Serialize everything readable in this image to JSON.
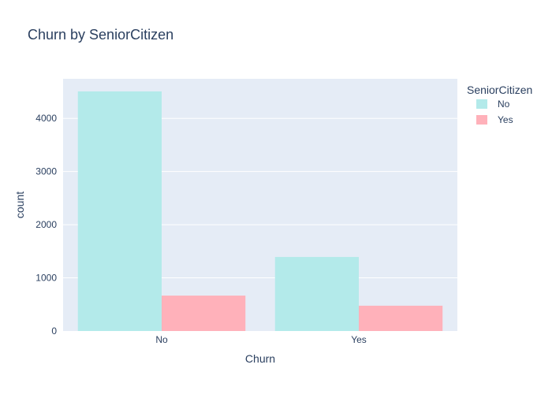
{
  "chart_data": {
    "type": "bar",
    "title": "Churn by SeniorCitizen",
    "xlabel": "Churn",
    "ylabel": "count",
    "categories": [
      "No",
      "Yes"
    ],
    "series": [
      {
        "name": "No",
        "values": [
          4508,
          1393
        ],
        "color": "#b3eaea"
      },
      {
        "name": "Yes",
        "values": [
          666,
          476
        ],
        "color": "#ffb1ba"
      }
    ],
    "ylim": [
      0,
      4745
    ],
    "yticks": [
      0,
      1000,
      2000,
      3000,
      4000
    ],
    "legend": {
      "title": "SeniorCitizen",
      "position": "top-right"
    },
    "grid": true,
    "colors": {
      "plot_bg": "#e5ecf6",
      "grid": "#ffffff",
      "text": "#2a3f5f"
    }
  }
}
